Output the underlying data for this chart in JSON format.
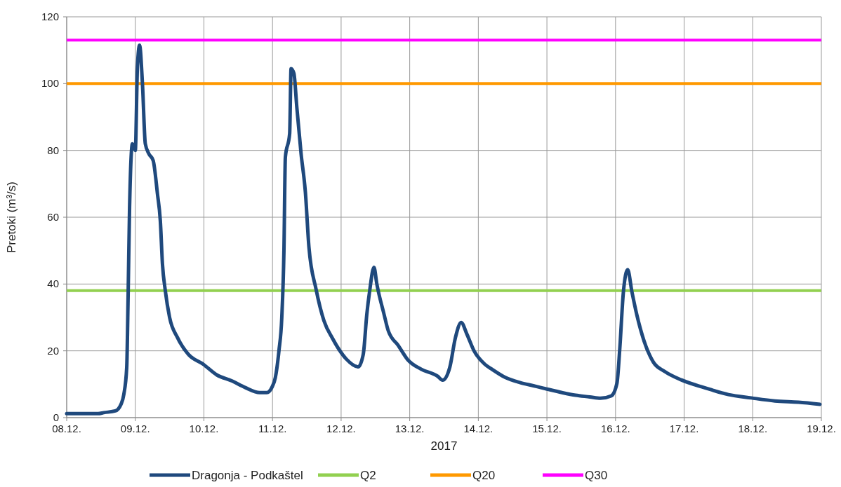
{
  "chart_data": {
    "type": "line",
    "xlabel": "2017",
    "ylabel": "Pretoki (m³/s)",
    "xlim": [
      "2017-12-08",
      "2017-12-19"
    ],
    "xticks": [
      {
        "value": "2017-12-08",
        "label": "08.12."
      },
      {
        "value": "2017-12-09",
        "label": "09.12."
      },
      {
        "value": "2017-12-10",
        "label": "10.12."
      },
      {
        "value": "2017-12-11",
        "label": "11.12."
      },
      {
        "value": "2017-12-12",
        "label": "12.12."
      },
      {
        "value": "2017-12-13",
        "label": "13.12."
      },
      {
        "value": "2017-12-14",
        "label": "14.12."
      },
      {
        "value": "2017-12-15",
        "label": "15.12."
      },
      {
        "value": "2017-12-16",
        "label": "16.12."
      },
      {
        "value": "2017-12-17",
        "label": "17.12."
      },
      {
        "value": "2017-12-18",
        "label": "18.12."
      },
      {
        "value": "2017-12-19",
        "label": "19.12."
      }
    ],
    "ylim": [
      0,
      120
    ],
    "yticks": [
      0,
      20,
      40,
      60,
      80,
      100,
      120
    ],
    "grid": true,
    "legend": "bottom",
    "line_style": "solid",
    "marker": "none",
    "x": [
      "2017-12-08T00:00",
      "2017-12-08T11:00",
      "2017-12-08T13:00",
      "2017-12-08T17:00",
      "2017-12-08T19:00",
      "2017-12-08T20:00",
      "2017-12-08T21:00",
      "2017-12-08T21:30",
      "2017-12-08T22:00",
      "2017-12-08T23:00",
      "2017-12-09T00:00",
      "2017-12-09T00:45",
      "2017-12-09T01:30",
      "2017-12-09T02:30",
      "2017-12-09T03:30",
      "2017-12-09T04:45",
      "2017-12-09T06:15",
      "2017-12-09T07:45",
      "2017-12-09T08:45",
      "2017-12-09T09:30",
      "2017-12-09T10:30",
      "2017-12-09T12:00",
      "2017-12-09T14:45",
      "2017-12-09T18:30",
      "2017-12-09T23:45",
      "2017-12-10T04:30",
      "2017-12-10T09:45",
      "2017-12-10T14:30",
      "2017-12-10T19:30",
      "2017-12-10T22:00",
      "2017-12-10T23:45",
      "2017-12-11T01:00",
      "2017-12-11T02:15",
      "2017-12-11T03:15",
      "2017-12-11T04:00",
      "2017-12-11T04:30",
      "2017-12-11T06:00",
      "2017-12-11T06:30",
      "2017-12-11T07:30",
      "2017-12-11T08:30",
      "2017-12-11T10:00",
      "2017-12-11T11:30",
      "2017-12-11T12:45",
      "2017-12-11T15:15",
      "2017-12-11T18:00",
      "2017-12-11T21:00",
      "2017-12-12T01:45",
      "2017-12-12T06:00",
      "2017-12-12T07:45",
      "2017-12-12T09:00",
      "2017-12-12T10:00",
      "2017-12-12T11:30",
      "2017-12-12T12:30",
      "2017-12-12T15:00",
      "2017-12-12T16:30",
      "2017-12-12T20:00",
      "2017-12-12T23:15",
      "2017-12-13T04:00",
      "2017-12-13T09:45",
      "2017-12-13T11:30",
      "2017-12-13T14:00",
      "2017-12-13T16:00",
      "2017-12-13T18:00",
      "2017-12-13T20:00",
      "2017-12-13T22:30",
      "2017-12-14T02:15",
      "2017-12-14T04:45",
      "2017-12-14T09:30",
      "2017-12-14T14:30",
      "2017-12-14T19:30",
      "2017-12-15T00:15",
      "2017-12-15T05:15",
      "2017-12-15T10:00",
      "2017-12-15T15:00",
      "2017-12-15T18:45",
      "2017-12-15T22:30",
      "2017-12-16T00:30",
      "2017-12-16T01:30",
      "2017-12-16T02:45",
      "2017-12-16T04:15",
      "2017-12-16T05:45",
      "2017-12-16T07:30",
      "2017-12-16T10:00",
      "2017-12-16T13:15",
      "2017-12-16T17:15",
      "2017-12-16T23:00",
      "2017-12-17T07:00",
      "2017-12-17T15:30",
      "2017-12-17T23:30",
      "2017-12-18T07:45",
      "2017-12-18T16:00",
      "2017-12-18T23:30"
    ],
    "series": [
      {
        "name": "Dragonja - Podkaštel",
        "color": "#1f497d",
        "values": [
          1.2,
          1.2,
          1.5,
          2,
          4,
          7,
          15,
          37,
          63,
          82,
          80,
          105,
          111.5,
          100,
          82,
          79,
          77,
          67,
          59,
          46,
          38,
          30,
          24,
          19,
          16,
          12.8,
          11,
          9,
          7.5,
          7.5,
          9,
          12,
          20,
          30,
          50,
          78,
          85,
          104.5,
          103,
          93,
          79,
          67.5,
          51,
          38.4,
          29,
          23.7,
          17.6,
          15.2,
          19,
          31,
          38,
          45,
          40,
          31,
          26,
          21.6,
          17.4,
          14.5,
          12.4,
          11.2,
          15,
          24,
          28.5,
          25,
          20,
          16,
          14.5,
          12,
          10.5,
          9.5,
          8.5,
          7.5,
          6.7,
          6.2,
          5.8,
          6.5,
          10.3,
          20.8,
          37.6,
          44.3,
          37.6,
          30.6,
          22.9,
          16.6,
          13.8,
          11.3,
          9,
          6.9,
          5.9,
          5,
          4.6,
          4
        ]
      }
    ],
    "ref_lines": [
      {
        "axis": "y",
        "value": 38,
        "label": "Q2",
        "color": "#92d050"
      },
      {
        "axis": "y",
        "value": 100,
        "label": "Q20",
        "color": "#ff9900"
      },
      {
        "axis": "y",
        "value": 113,
        "label": "Q30",
        "color": "#ff00ff"
      }
    ]
  }
}
